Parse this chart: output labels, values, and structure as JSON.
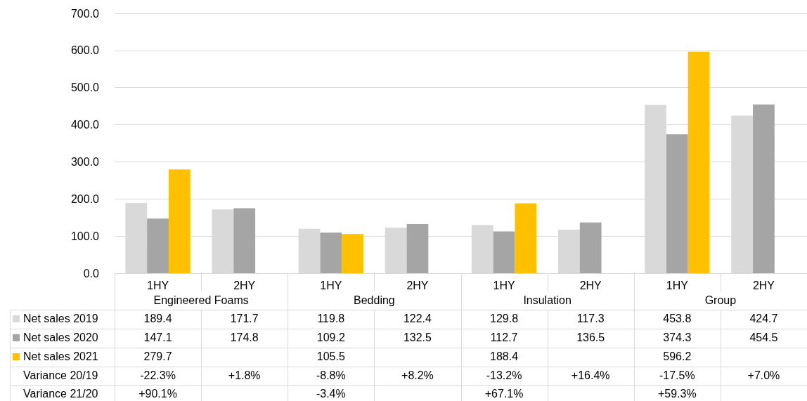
{
  "chart_data": {
    "type": "bar",
    "categories": [
      "1HY",
      "2HY",
      "1HY",
      "2HY",
      "1HY",
      "2HY",
      "1HY",
      "2HY"
    ],
    "series": [
      {
        "name": "Net sales 2019",
        "color": "#d9d9d9",
        "values": [
          189.4,
          171.7,
          119.8,
          122.4,
          129.8,
          117.3,
          453.8,
          424.7
        ]
      },
      {
        "name": "Net sales 2020",
        "color": "#a5a5a5",
        "values": [
          147.1,
          174.8,
          109.2,
          132.5,
          112.7,
          136.5,
          374.3,
          454.5
        ]
      },
      {
        "name": "Net sales 2021",
        "color": "#ffc000",
        "values": [
          279.7,
          null,
          105.5,
          null,
          188.4,
          null,
          596.2,
          null
        ]
      }
    ],
    "ylim": [
      0,
      700
    ],
    "yticks": [
      {
        "value": 0,
        "label": "0.0"
      },
      {
        "value": 100,
        "label": "100.0"
      },
      {
        "value": 200,
        "label": "200.0"
      },
      {
        "value": 300,
        "label": "300.0"
      },
      {
        "value": 400,
        "label": "400.0"
      },
      {
        "value": 500,
        "label": "500.0"
      },
      {
        "value": 600,
        "label": "600.0"
      },
      {
        "value": 700,
        "label": "700.0"
      }
    ],
    "grid": "y",
    "legend": "bottom",
    "data_labels": true,
    "annotations": [
      "Engineered Foams",
      "Bedding",
      "Insulation",
      "Group",
      "Variance 20/19",
      "-22.3%",
      "+1.8%",
      "-8.8%",
      "+8.2%",
      "-13.2%",
      "+16.4%",
      "-17.5%",
      "+7.0%",
      "Variance 21/20",
      "+90.1%",
      null,
      "-3.4%",
      null,
      "+67.1%",
      null,
      "+59.3%",
      null
    ]
  }
}
